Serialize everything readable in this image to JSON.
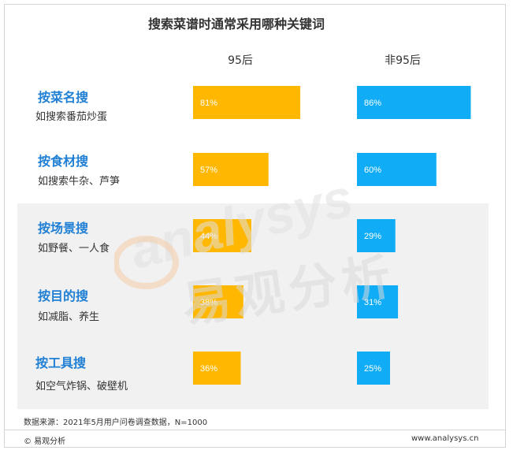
{
  "chart_data": {
    "type": "bar",
    "title": "搜索菜谱时通常采用哪种关键词",
    "categories": [
      {
        "label": "按菜名搜",
        "example": "如搜索番茄炒蛋"
      },
      {
        "label": "按食材搜",
        "example": "如搜索牛杂、芦笋"
      },
      {
        "label": "按场景搜",
        "example": "如野餐、一人食"
      },
      {
        "label": "按目的搜",
        "example": "如减脂、养生"
      },
      {
        "label": "按工具搜",
        "example": "如空气炸锅、破壁机"
      }
    ],
    "series": [
      {
        "name": "95后",
        "color": "#ffb700",
        "values": [
          81,
          57,
          44,
          38,
          36
        ],
        "value_labels": [
          "81%",
          "57%",
          "44%",
          "38%",
          "36%"
        ]
      },
      {
        "name": "非95后",
        "color": "#10acf5",
        "values": [
          86,
          60,
          29,
          31,
          25
        ],
        "value_labels": [
          "86%",
          "60%",
          "29%",
          "31%",
          "25%"
        ]
      }
    ],
    "highlighted_categories": [
      "按场景搜",
      "按目的搜",
      "按工具搜"
    ],
    "highlight_color": "#f1f1f1",
    "label_color": "#1f7fd4"
  },
  "source_note": "数据来源：2021年5月用户问卷调查数据，N=1000",
  "footer": {
    "brand": "© 易观分析",
    "url": "www.analysys.cn"
  },
  "watermark": {
    "latin": "analysys",
    "cjk": "易观分析"
  }
}
